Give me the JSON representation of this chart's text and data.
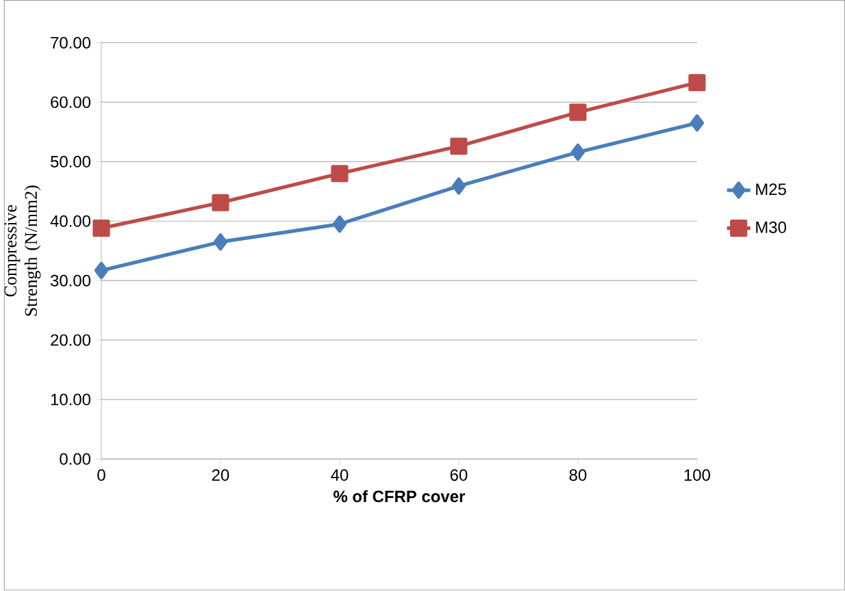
{
  "chart_data": {
    "type": "line",
    "xlabel": "% of CFRP cover",
    "ylabel": "Compressive Strength (N/mm2)",
    "x": [
      0,
      20,
      40,
      60,
      80,
      100
    ],
    "series": [
      {
        "name": "M25",
        "color": "#4a7ebb",
        "marker": "diamond",
        "values": [
          31.7,
          36.5,
          39.5,
          45.9,
          51.6,
          56.5
        ]
      },
      {
        "name": "M30",
        "color": "#be4b48",
        "marker": "square",
        "values": [
          38.8,
          43.1,
          48.0,
          52.6,
          58.3,
          63.3
        ]
      }
    ],
    "xlim": [
      0,
      100
    ],
    "xticks": [
      0,
      20,
      40,
      60,
      80,
      100
    ],
    "ylim": [
      0,
      70
    ],
    "yticks": [
      {
        "value": 0,
        "label": "0.00"
      },
      {
        "value": 10,
        "label": "10.00"
      },
      {
        "value": 20,
        "label": "20.00"
      },
      {
        "value": 30,
        "label": "30.00"
      },
      {
        "value": 40,
        "label": "40.00"
      },
      {
        "value": 50,
        "label": "50.00"
      },
      {
        "value": 60,
        "label": "60.00"
      },
      {
        "value": 70,
        "label": "70.00"
      }
    ],
    "grid": "y",
    "legend": "right",
    "line_style": "solid"
  }
}
